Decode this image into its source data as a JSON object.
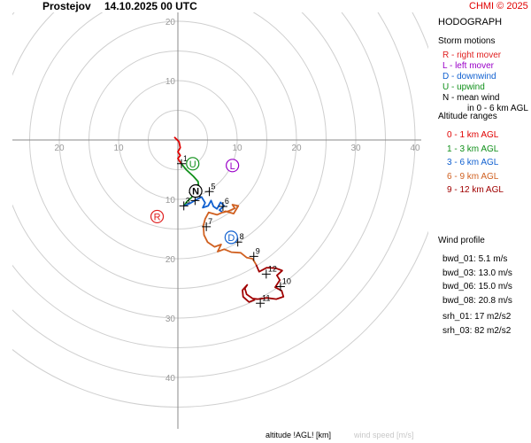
{
  "header": {
    "station": "Prostejov",
    "datetime": "14.10.2025 00 UTC",
    "credit": "CHMI © 2025"
  },
  "side_panel": {
    "title": "HODOGRAPH",
    "storm_motions": {
      "heading": "Storm motions",
      "items": [
        {
          "text": "R - right mover",
          "color": "#e02020"
        },
        {
          "text": "L - left mover",
          "color": "#9a00c8"
        },
        {
          "text": "D - downwind",
          "color": "#1060d0"
        },
        {
          "text": "U - upwind",
          "color": "#10901a"
        },
        {
          "text": "N - mean wind",
          "color": "#000000"
        },
        {
          "text": "in 0 - 6 km AGL",
          "color": "#000000"
        }
      ]
    },
    "altitude_ranges": {
      "heading": "Altitude ranges",
      "items": [
        {
          "text": "0 - 1 km AGL",
          "color": "#e00000"
        },
        {
          "text": "1 - 3 km AGL",
          "color": "#10901a"
        },
        {
          "text": "3 - 6 km AGL",
          "color": "#1060d0"
        },
        {
          "text": "6 - 9 km AGL",
          "color": "#d06020"
        },
        {
          "text": "9 - 12 km AGL",
          "color": "#a00000"
        }
      ]
    },
    "wind_profile": {
      "heading": "Wind profile",
      "shear": [
        "bwd_01: 5.1 m/s",
        "bwd_03: 13.0 m/s",
        "bwd_06: 15.0 m/s",
        "bwd_08: 20.8 m/s"
      ],
      "helicity": [
        "srh_01: 17 m2/s2",
        "srh_03: 82 m2/s2"
      ]
    }
  },
  "footer": {
    "altitude_label": "altitude !AGL! [km]",
    "speed_label": "wind speed [m/s]"
  },
  "chart_data": {
    "type": "line",
    "title": "",
    "xlabel": "wind speed [m/s]",
    "xlim": [
      -28,
      40
    ],
    "ylim": [
      -40,
      20
    ],
    "grid": true,
    "rings": [
      5,
      10,
      15,
      20,
      25,
      30,
      35,
      40,
      45
    ],
    "x_ticks": [
      {
        "value": -20,
        "label": "20"
      },
      {
        "value": -10,
        "label": "10"
      },
      {
        "value": 10,
        "label": "10"
      },
      {
        "value": 20,
        "label": "20"
      },
      {
        "value": 30,
        "label": "30"
      },
      {
        "value": 40,
        "label": "40"
      }
    ],
    "y_ticks": [
      {
        "value": 20,
        "label": "20"
      },
      {
        "value": 10,
        "label": "10"
      },
      {
        "value": -10,
        "label": "10"
      },
      {
        "value": -20,
        "label": "20"
      },
      {
        "value": -30,
        "label": "30"
      },
      {
        "value": -40,
        "label": "40"
      }
    ],
    "series": [
      {
        "name": "0 - 1 km AGL",
        "color": "#e00000",
        "points": [
          [
            -0.6,
            0.5
          ],
          [
            0.2,
            -0.3
          ],
          [
            0.4,
            -1.3
          ],
          [
            0.0,
            -2.0
          ],
          [
            0.4,
            -2.6
          ],
          [
            0.0,
            -3.1
          ],
          [
            0.3,
            -3.6
          ],
          [
            0.6,
            -4.0
          ]
        ]
      },
      {
        "name": "1 - 3 km AGL",
        "color": "#10901a",
        "points": [
          [
            0.6,
            -4.0
          ],
          [
            1.4,
            -5.0
          ],
          [
            2.6,
            -6.1
          ],
          [
            3.4,
            -7.0
          ],
          [
            3.6,
            -8.6
          ],
          [
            2.6,
            -8.9
          ],
          [
            2.3,
            -9.7
          ],
          [
            1.6,
            -10.3
          ],
          [
            1.0,
            -11.1
          ]
        ]
      },
      {
        "name": "3 - 6 km AGL",
        "color": "#1060d0",
        "points": [
          [
            1.0,
            -11.1
          ],
          [
            2.0,
            -10.7
          ],
          [
            3.2,
            -10.0
          ],
          [
            4.0,
            -9.6
          ],
          [
            4.6,
            -10.6
          ],
          [
            4.2,
            -11.4
          ],
          [
            5.1,
            -11.1
          ],
          [
            5.6,
            -10.2
          ],
          [
            6.0,
            -11.2
          ],
          [
            6.6,
            -11.6
          ],
          [
            7.2,
            -10.5
          ],
          [
            7.8,
            -11.1
          ],
          [
            7.0,
            -11.8
          ],
          [
            7.6,
            -12.2
          ]
        ]
      },
      {
        "name": "6 - 9 km AGL",
        "color": "#d06020",
        "points": [
          [
            7.6,
            -12.2
          ],
          [
            8.5,
            -12.0
          ],
          [
            9.6,
            -11.5
          ],
          [
            9.2,
            -10.9
          ],
          [
            10.2,
            -11.1
          ],
          [
            9.4,
            -12.4
          ],
          [
            8.0,
            -12.0
          ],
          [
            6.6,
            -12.6
          ],
          [
            5.2,
            -12.2
          ],
          [
            4.6,
            -13.3
          ],
          [
            4.3,
            -14.4
          ],
          [
            4.4,
            -16.0
          ],
          [
            5.0,
            -17.2
          ],
          [
            6.2,
            -18.0
          ],
          [
            7.3,
            -17.6
          ],
          [
            6.7,
            -18.8
          ],
          [
            7.8,
            -18.4
          ],
          [
            9.0,
            -18.9
          ],
          [
            10.6,
            -19.0
          ],
          [
            11.6,
            -19.8
          ],
          [
            12.6,
            -20.0
          ],
          [
            13.2,
            -21.0
          ]
        ]
      },
      {
        "name": "9 - 12 km AGL",
        "color": "#a00000",
        "points": [
          [
            13.2,
            -21.0
          ],
          [
            13.7,
            -22.2
          ],
          [
            15.0,
            -21.5
          ],
          [
            16.5,
            -21.6
          ],
          [
            17.6,
            -22.0
          ],
          [
            16.7,
            -22.8
          ],
          [
            17.2,
            -23.6
          ],
          [
            16.4,
            -24.8
          ],
          [
            17.5,
            -25.4
          ],
          [
            17.8,
            -26.4
          ],
          [
            16.6,
            -26.8
          ],
          [
            15.0,
            -26.6
          ],
          [
            13.5,
            -26.8
          ],
          [
            12.6,
            -26.7
          ],
          [
            11.6,
            -26.0
          ],
          [
            11.3,
            -25.0
          ],
          [
            11.7,
            -24.4
          ],
          [
            10.9,
            -25.3
          ],
          [
            11.0,
            -26.4
          ],
          [
            12.0,
            -27.3
          ],
          [
            13.0,
            -26.9
          ]
        ]
      }
    ],
    "altitude_markers": [
      {
        "label": "1",
        "x": 0.6,
        "y": -4.0
      },
      {
        "label": "2",
        "x": 2.6,
        "y": -8.9
      },
      {
        "label": "3",
        "x": 1.0,
        "y": -11.1
      },
      {
        "label": "4",
        "x": 2.9,
        "y": -10.2
      },
      {
        "label": "5",
        "x": 5.3,
        "y": -8.7
      },
      {
        "label": "6",
        "x": 7.6,
        "y": -11.2
      },
      {
        "label": "7",
        "x": 4.8,
        "y": -14.6
      },
      {
        "label": "8",
        "x": 10.1,
        "y": -17.2
      },
      {
        "label": "9",
        "x": 12.8,
        "y": -19.6
      },
      {
        "label": "10",
        "x": 17.3,
        "y": -24.7
      },
      {
        "label": "11",
        "x": 13.9,
        "y": -27.5
      },
      {
        "label": "12",
        "x": 14.9,
        "y": -22.6
      }
    ],
    "storm_motions": [
      {
        "label": "R",
        "x": -3.5,
        "y": -12.9,
        "color": "#e02020"
      },
      {
        "label": "L",
        "x": 9.2,
        "y": -4.3,
        "color": "#9a00c8"
      },
      {
        "label": "D",
        "x": 9.0,
        "y": -16.4,
        "color": "#1060d0"
      },
      {
        "label": "U",
        "x": 2.5,
        "y": -4.0,
        "color": "#10901a"
      },
      {
        "label": "N",
        "x": 3.0,
        "y": -8.6,
        "color": "#000000"
      }
    ]
  }
}
